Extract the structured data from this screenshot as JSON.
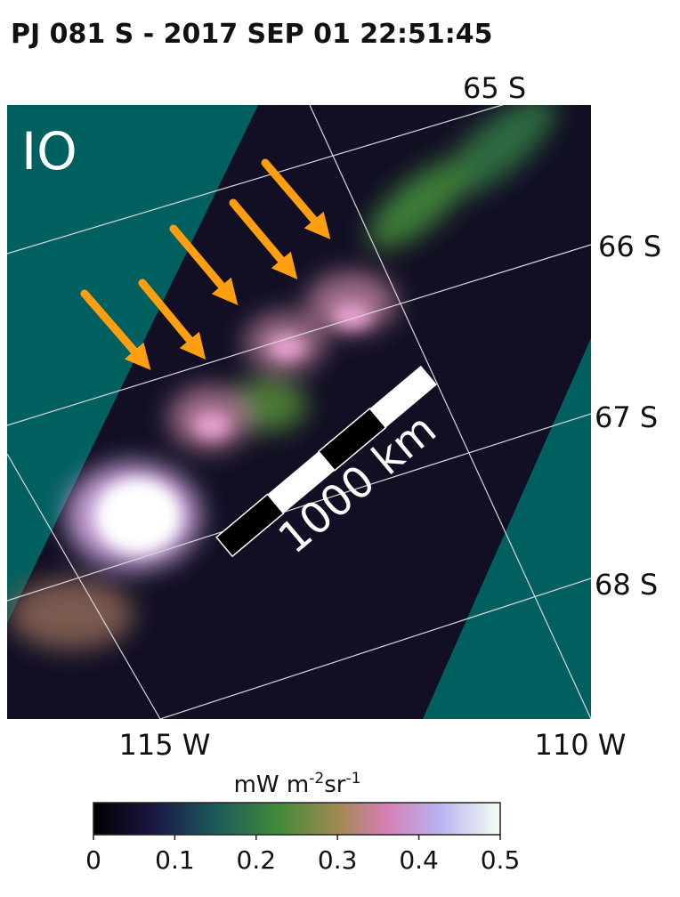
{
  "title": "PJ 081 S - 2017 SEP 01 22:51:45",
  "image_label": "IO",
  "scale_bar": "1000 km",
  "lat_labels": [
    "65 S",
    "66 S",
    "67 S",
    "68 S"
  ],
  "lon_labels": [
    "115 W",
    "110 W"
  ],
  "colorbar": {
    "unit_parts": [
      "mW m",
      "-2",
      "sr",
      "-1"
    ],
    "lim": [
      0,
      0.5
    ],
    "ticks": [
      0,
      0.1,
      0.2,
      0.3,
      0.4,
      0.5
    ]
  }
}
